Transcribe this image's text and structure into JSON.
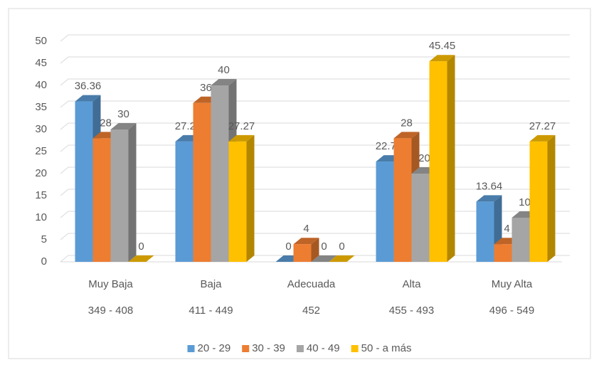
{
  "chart_data": {
    "type": "bar3d",
    "categories": [
      "Muy Baja",
      "Baja",
      "Adecuada",
      "Alta",
      "Muy Alta"
    ],
    "ranges": [
      "349 - 408",
      "411 - 449",
      "452",
      "455 - 493",
      "496 - 549"
    ],
    "series": [
      {
        "name": "20 - 29",
        "color": "#5b9bd5",
        "values": [
          36.36,
          27.27,
          0,
          22.73,
          13.64
        ]
      },
      {
        "name": "30 - 39",
        "color": "#ed7d31",
        "values": [
          28,
          36,
          4,
          28,
          4
        ]
      },
      {
        "name": "40 - 49",
        "color": "#a5a5a5",
        "values": [
          30,
          40,
          0,
          20,
          10
        ]
      },
      {
        "name": "50 - a más",
        "color": "#ffc000",
        "values": [
          0,
          27.27,
          0,
          45.45,
          27.27
        ]
      }
    ],
    "ylim": [
      0,
      50
    ],
    "yticks": [
      0,
      5,
      10,
      15,
      20,
      25,
      30,
      35,
      40,
      45,
      50
    ],
    "grid": true,
    "legend": "bottom"
  }
}
